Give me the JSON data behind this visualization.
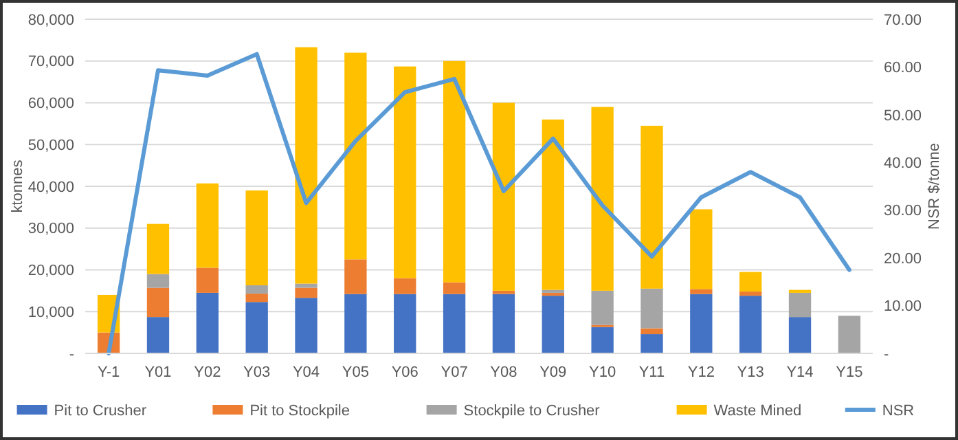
{
  "chart_data": {
    "type": "bar",
    "stacked": true,
    "ylabel": "ktonnes",
    "y2label": "NSR $/tonne",
    "categories": [
      "Y-1",
      "Y01",
      "Y02",
      "Y03",
      "Y04",
      "Y05",
      "Y06",
      "Y07",
      "Y08",
      "Y09",
      "Y10",
      "Y11",
      "Y12",
      "Y13",
      "Y14",
      "Y15"
    ],
    "series": [
      {
        "name": "Pit to Crusher",
        "color": "#4472c4",
        "values": [
          0,
          8700,
          14500,
          12300,
          13300,
          14200,
          14200,
          14200,
          14200,
          13800,
          6300,
          4600,
          14200,
          13800,
          8700,
          0
        ]
      },
      {
        "name": "Pit to Stockpile",
        "color": "#ed7d31",
        "values": [
          5000,
          7000,
          6000,
          2000,
          2400,
          8300,
          3800,
          2800,
          800,
          700,
          500,
          1400,
          1200,
          1000,
          0,
          0
        ]
      },
      {
        "name": "Stockpile to Crusher",
        "color": "#a5a5a5",
        "values": [
          0,
          3300,
          0,
          2000,
          1000,
          0,
          null,
          null,
          null,
          700,
          8200,
          9500,
          0,
          null,
          5800,
          9000
        ]
      },
      {
        "name": "Waste Mined",
        "color": "#ffc000",
        "values": [
          9000,
          12000,
          20200,
          22700,
          56600,
          49500,
          50700,
          53000,
          45000,
          40800,
          44000,
          39000,
          19100,
          4700,
          700,
          0
        ]
      },
      {
        "name": "NSR",
        "type": "line",
        "axis": "y2",
        "color": "#5b9bd5",
        "values": [
          0,
          59.3,
          58.2,
          62.7,
          31.5,
          44.5,
          54.7,
          57.5,
          34,
          45,
          31,
          20.3,
          32.7,
          38,
          32.7,
          17.5
        ]
      }
    ],
    "ylim": [
      0,
      80000
    ],
    "yticks": [
      {
        "value": 0,
        "label": "-"
      },
      {
        "value": 10000,
        "label": "10,000"
      },
      {
        "value": 20000,
        "label": "20,000"
      },
      {
        "value": 30000,
        "label": "30,000"
      },
      {
        "value": 40000,
        "label": "40,000"
      },
      {
        "value": 50000,
        "label": "50,000"
      },
      {
        "value": 60000,
        "label": "60,000"
      },
      {
        "value": 70000,
        "label": "70,000"
      },
      {
        "value": 80000,
        "label": "80,000"
      }
    ],
    "y2lim": [
      0,
      70
    ],
    "y2ticks": [
      {
        "value": 0,
        "label": "-"
      },
      {
        "value": 10,
        "label": "10.00"
      },
      {
        "value": 20,
        "label": "20.00"
      },
      {
        "value": 30,
        "label": "30.00"
      },
      {
        "value": 40,
        "label": "40.00"
      },
      {
        "value": 50,
        "label": "50.00"
      },
      {
        "value": 60,
        "label": "60.00"
      },
      {
        "value": 70,
        "label": "70.00"
      }
    ],
    "grid": "y",
    "legend": "bottom",
    "marker": "none",
    "line_style": "solid"
  }
}
